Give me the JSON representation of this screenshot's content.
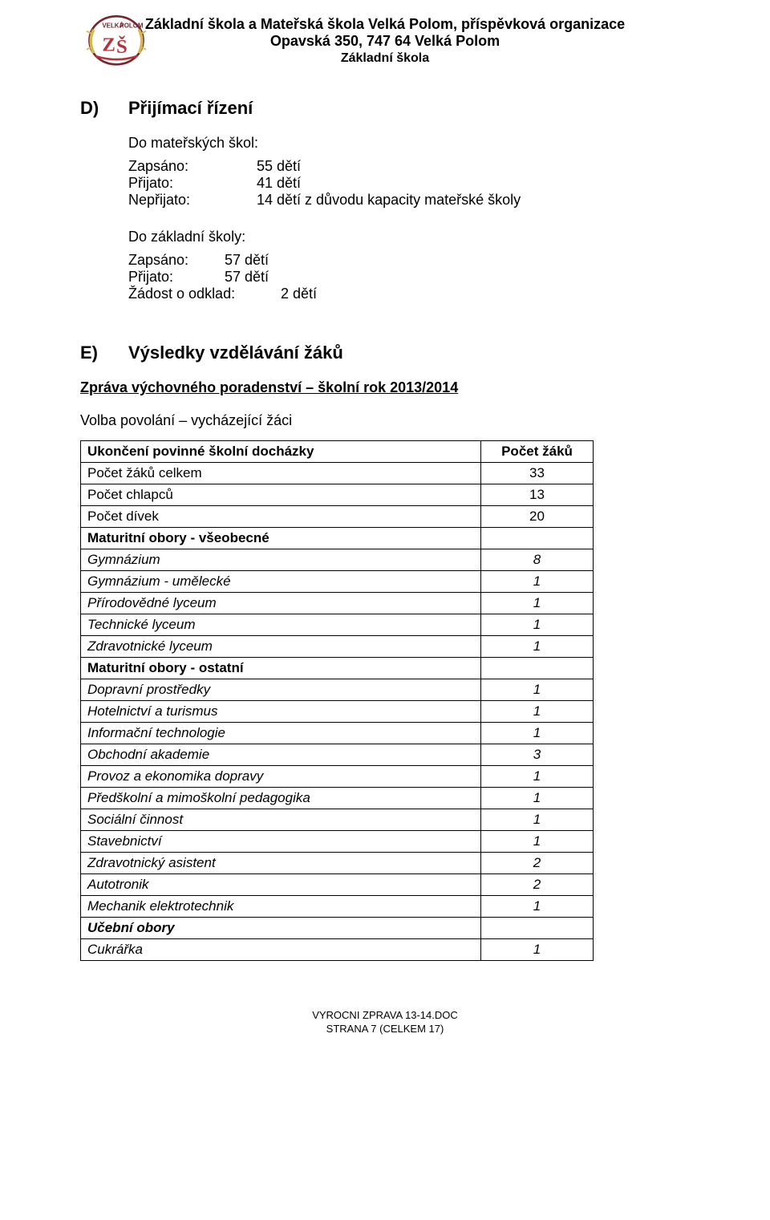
{
  "header": {
    "line1": "Základní škola a Mateřská škola Velká Polom, příspěvková organizace",
    "line2": "Opavská 350, 747 64  Velká Polom",
    "line3": "Základní škola"
  },
  "logo": {
    "stroke": "#7a242f",
    "fill_red": "#b2353c",
    "yellow": "#d6b94f",
    "text": "ZŠ"
  },
  "sectionD": {
    "letter": "D)",
    "title": "Přijímací řízení",
    "blockA": {
      "label": "Do mateřských škol:",
      "rows": [
        {
          "k": "Zapsáno:",
          "v": "55 dětí"
        },
        {
          "k": "Přijato:",
          "v": "41 dětí"
        },
        {
          "k": "Nepřijato:",
          "v": "14 dětí z důvodu kapacity mateřské školy"
        }
      ]
    },
    "blockB": {
      "label": "Do základní školy:",
      "rows": [
        {
          "k": "Zapsáno:",
          "v": "57 dětí"
        },
        {
          "k": "Přijato:",
          "v": "57 dětí"
        },
        {
          "k": "Žádost o odklad:",
          "v": "2 dětí"
        }
      ]
    }
  },
  "sectionE": {
    "letter": "E)",
    "title": "Výsledky vzdělávání žáků",
    "subtitle": "Zpráva výchovného poradenství – školní rok 2013/2014",
    "volba": "Volba povolání – vycházející žáci",
    "table": {
      "header": [
        "Ukončení povinné školní docházky",
        "Počet žáků"
      ],
      "rows": [
        {
          "label": "Počet žáků celkem",
          "value": "33",
          "style": "plain"
        },
        {
          "label": "Počet chlapců",
          "value": "13",
          "style": "plain"
        },
        {
          "label": "Počet dívek",
          "value": "20",
          "style": "plain"
        },
        {
          "label": "Maturitní obory - všeobecné",
          "value": "",
          "style": "bold"
        },
        {
          "label": "Gymnázium",
          "value": "8",
          "style": "italic"
        },
        {
          "label": "Gymnázium - umělecké",
          "value": "1",
          "style": "italic"
        },
        {
          "label": "Přírodovědné lyceum",
          "value": "1",
          "style": "italic"
        },
        {
          "label": "Technické lyceum",
          "value": "1",
          "style": "italic"
        },
        {
          "label": "Zdravotnické lyceum",
          "value": "1",
          "style": "italic"
        },
        {
          "label": "Maturitní obory - ostatní",
          "value": "",
          "style": "bold"
        },
        {
          "label": "Dopravní prostředky",
          "value": "1",
          "style": "italic"
        },
        {
          "label": "Hotelnictví a turismus",
          "value": "1",
          "style": "italic"
        },
        {
          "label": "Informační technologie",
          "value": "1",
          "style": "italic"
        },
        {
          "label": "Obchodní akademie",
          "value": "3",
          "style": "italic"
        },
        {
          "label": "Provoz a ekonomika dopravy",
          "value": "1",
          "style": "italic"
        },
        {
          "label": "Předškolní a mimoškolní pedagogika",
          "value": "1",
          "style": "italic"
        },
        {
          "label": "Sociální činnost",
          "value": "1",
          "style": "italic"
        },
        {
          "label": "Stavebnictví",
          "value": "1",
          "style": "italic"
        },
        {
          "label": "Zdravotnický asistent",
          "value": "2",
          "style": "italic"
        },
        {
          "label": "Autotronik",
          "value": "2",
          "style": "italic"
        },
        {
          "label": "Mechanik elektrotechnik",
          "value": "1",
          "style": "italic"
        },
        {
          "label": "Učební obory",
          "value": "",
          "style": "bolditalic"
        },
        {
          "label": "Cukrářka",
          "value": "1",
          "style": "italic"
        }
      ]
    }
  },
  "footer": {
    "line1": "VYROCNI ZPRAVA 13-14.DOC",
    "line2": "STRANA 7 (CELKEM 17)"
  }
}
